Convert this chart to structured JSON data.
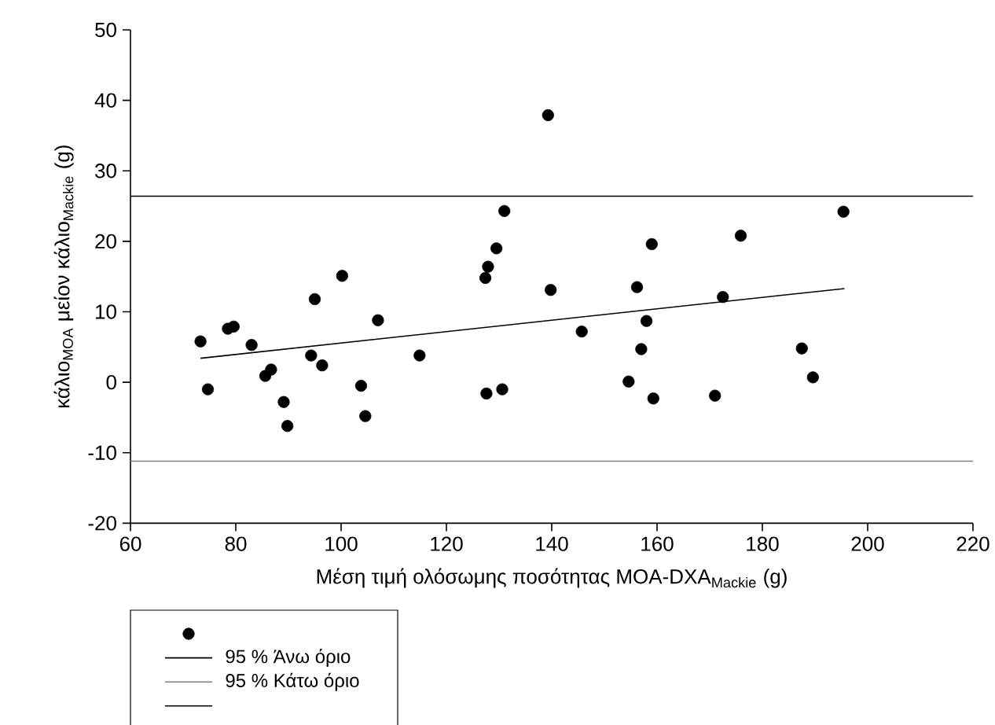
{
  "chart_data": {
    "type": "scatter",
    "xlabel": "Μέση τιμή ολόσωμης ποσότητας MOA-DXA$_{Mackie}$ (g)",
    "ylabel": "κάλιο$_{MOA}$ μείον κάλιο$_{Mackie}$ (g)",
    "xlim": [
      60,
      220
    ],
    "xticks": [
      60,
      80,
      100,
      120,
      140,
      160,
      180,
      200,
      220
    ],
    "ylim": [
      -20,
      50
    ],
    "yticks": [
      -20,
      -10,
      0,
      10,
      20,
      30,
      40,
      50
    ],
    "grid": false,
    "legend": "bottom left",
    "series": [
      {
        "type": "scatter",
        "marker": "circle",
        "color": "#000000",
        "x": [
          73.3,
          74.7,
          78.5,
          79.6,
          83.0,
          85.6,
          86.7,
          89.1,
          89.8,
          94.3,
          95.0,
          96.4,
          100.2,
          103.8,
          104.6,
          107.0,
          114.9,
          127.4,
          127.9,
          129.5,
          127.6,
          130.6,
          139.3,
          131.0,
          139.8,
          145.7,
          156.2,
          159.0,
          158.0,
          157.0,
          154.6,
          159.3,
          171.0,
          172.5,
          175.9,
          187.5,
          189.6,
          195.4
        ],
        "values": [
          5.8,
          -1.0,
          7.6,
          7.9,
          5.3,
          0.9,
          1.8,
          -2.8,
          -6.2,
          3.8,
          11.8,
          2.4,
          15.1,
          -0.5,
          -4.8,
          8.8,
          3.8,
          14.8,
          16.4,
          19.0,
          -1.6,
          -1.0,
          37.9,
          24.3,
          13.1,
          7.2,
          13.5,
          19.6,
          8.7,
          4.7,
          0.1,
          -2.3,
          -1.9,
          12.1,
          20.8,
          4.8,
          0.7,
          24.2
        ]
      },
      {
        "type": "line",
        "marker": "none",
        "name": "95 % Άνω όριο",
        "color": "#000000",
        "x": [
          60,
          220
        ],
        "values": [
          26.4,
          26.4
        ]
      },
      {
        "type": "line",
        "marker": "none",
        "name": "95 % Κάτω όριο",
        "color": "#808080",
        "x": [
          60,
          220
        ],
        "values": [
          -11.2,
          -11.2
        ]
      },
      {
        "type": "line",
        "marker": "none",
        "color": "#000000",
        "x": [
          73.3,
          195.6
        ],
        "values": [
          3.4,
          13.3
        ]
      }
    ]
  }
}
